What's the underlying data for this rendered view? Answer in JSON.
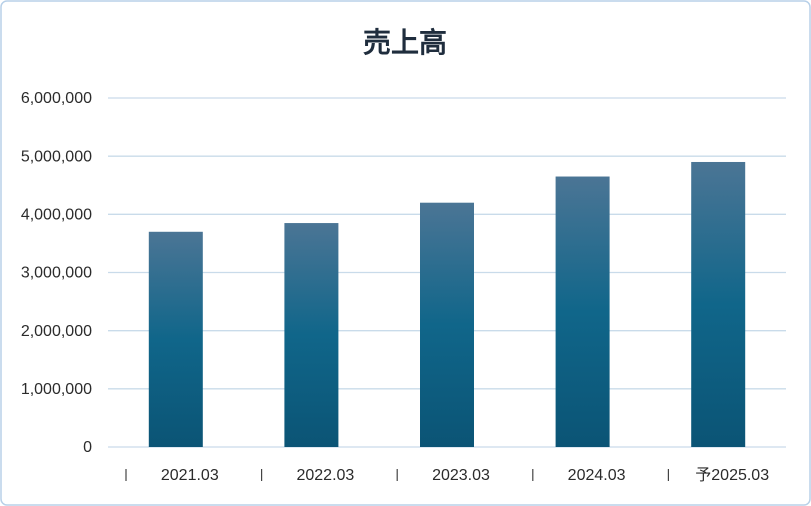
{
  "chart_data": {
    "type": "bar",
    "title": "売上高",
    "categories": [
      "2021.03",
      "2022.03",
      "2023.03",
      "2024.03",
      "予2025.03"
    ],
    "values": [
      3700000,
      3850000,
      4200000,
      4650000,
      4900000
    ],
    "colors": [
      "#4b7595",
      "#10668a",
      "#0b5475"
    ],
    "ylim": [
      0,
      6000000
    ],
    "yticks": [
      0,
      {
        "value": 1000000,
        "label": "1,000,000"
      },
      {
        "value": 2000000,
        "label": "2,000,000"
      },
      {
        "value": 3000000,
        "label": "3,000,000"
      },
      {
        "value": 4000000,
        "label": "4,000,000"
      },
      {
        "value": 5000000,
        "label": "5,000,000"
      },
      {
        "value": 6000000,
        "label": "6,000,000"
      }
    ],
    "grid": true
  }
}
